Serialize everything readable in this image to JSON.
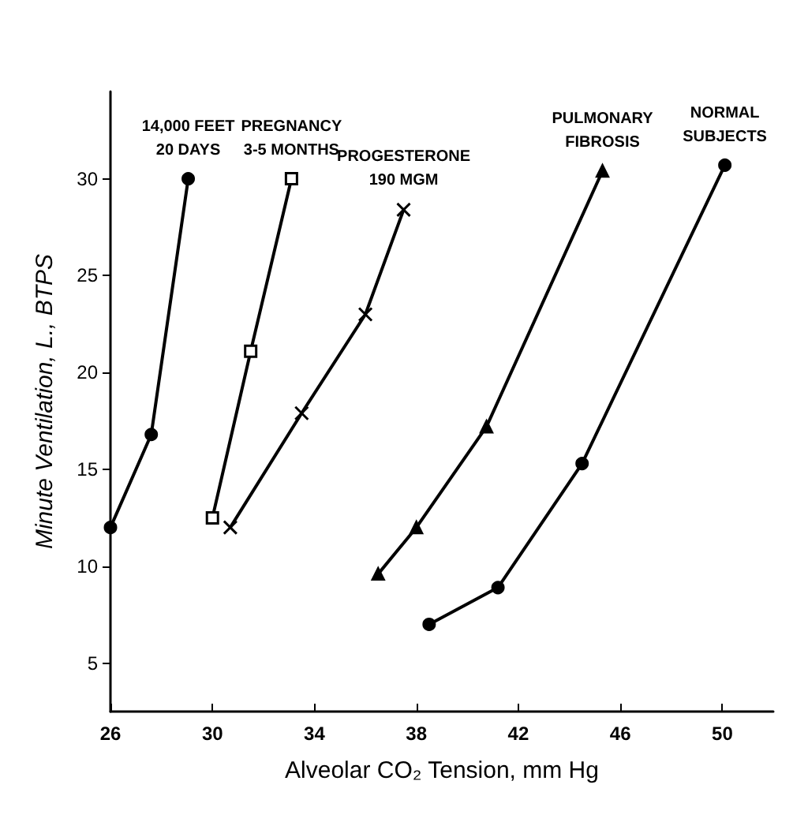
{
  "chart_data": {
    "type": "line",
    "xlabel": "Alveolar CO₂ Tension, mm Hg",
    "ylabel": "Minute Ventilation, L., BTPS",
    "xlim": [
      26,
      52
    ],
    "xticks": [
      26,
      30,
      34,
      38,
      42,
      46,
      50
    ],
    "ylim": [
      2.5,
      34.5
    ],
    "yticks": [
      5,
      10,
      15,
      20,
      25,
      30
    ],
    "grid": false,
    "legend": false,
    "line_style": "solid",
    "series": [
      {
        "name": "14,000 FEET\n20 DAYS",
        "color": "#000000",
        "marker": "circle",
        "x": [
          26,
          27.6,
          29.05
        ],
        "values": [
          12,
          16.8,
          30
        ]
      },
      {
        "name": "PREGNANCY\n3-5 MONTHS",
        "color": "#000000",
        "marker": "square",
        "x": [
          30,
          31.5,
          33.1
        ],
        "values": [
          12.5,
          21.1,
          30
        ]
      },
      {
        "name": "PROGESTERONE\n190 MGM",
        "color": "#000000",
        "marker": "cross",
        "x": [
          30.7,
          33.5,
          36,
          37.5
        ],
        "values": [
          12,
          17.9,
          23,
          28.4
        ]
      },
      {
        "name": "PULMONARY\nFIBROSIS",
        "color": "#000000",
        "marker": "triangle",
        "x": [
          36.5,
          38,
          40.75,
          45.3
        ],
        "values": [
          9.6,
          12,
          17.2,
          30.4
        ]
      },
      {
        "name": "NORMAL\nSUBJECTS",
        "color": "#000000",
        "marker": "circle",
        "x": [
          38.5,
          41.2,
          44.5,
          50.1
        ],
        "values": [
          7,
          8.9,
          15.3,
          30.7
        ]
      }
    ]
  }
}
